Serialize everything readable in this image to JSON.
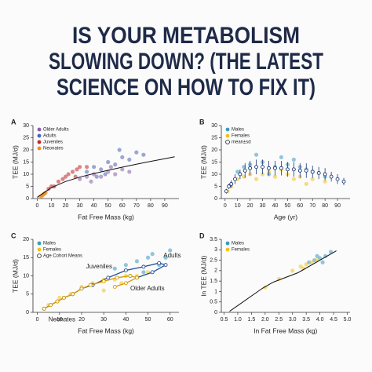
{
  "title": [
    "IS YOUR METABOLISM",
    "SLOWING DOWN? (THE LATEST",
    "SCIENCE ON HOW TO FIX IT)"
  ],
  "chart_data": [
    {
      "type": "scatter",
      "label": "A",
      "xlabel": "Fat Free Mass (kg)",
      "ylabel": "TEE (MJ/d)",
      "xlim": [
        -3,
        100
      ],
      "ylim": [
        0,
        30
      ],
      "xticks": [
        0,
        10,
        20,
        30,
        40,
        50,
        60,
        70,
        80,
        90
      ],
      "yticks": [
        0,
        5,
        10,
        15,
        20,
        25,
        30
      ],
      "series": [
        {
          "name": "Older Adults",
          "color": "#8b5fa8",
          "x": [
            30,
            35,
            40,
            45,
            50,
            55,
            60,
            38,
            52,
            65
          ],
          "y": [
            8,
            9,
            10,
            9,
            11,
            10,
            12,
            7,
            13,
            11
          ]
        },
        {
          "name": "Adults",
          "color": "#4a63b5",
          "x": [
            35,
            40,
            45,
            50,
            55,
            60,
            65,
            70,
            48,
            58,
            42,
            75
          ],
          "y": [
            11,
            13,
            12,
            15,
            14,
            17,
            16,
            19,
            10,
            20,
            9,
            18
          ]
        },
        {
          "name": "Juveniles",
          "color": "#c0282c",
          "x": [
            8,
            12,
            15,
            18,
            22,
            25,
            28,
            30,
            20,
            35,
            10,
            27
          ],
          "y": [
            4,
            5,
            7,
            8,
            10,
            11,
            12,
            13,
            9,
            13,
            5,
            9
          ]
        },
        {
          "name": "Neonates",
          "color": "#f08c1e",
          "x": [
            2,
            3,
            4,
            5,
            3.5,
            4.5,
            6,
            5.5
          ],
          "y": [
            0.8,
            1,
            1.5,
            2,
            1.2,
            1.8,
            2.5,
            2.2
          ]
        }
      ],
      "lines": [
        {
          "color": "#111111",
          "x": [
            0,
            10,
            20,
            30,
            40,
            50,
            60,
            70,
            80,
            90,
            97
          ],
          "y": [
            0.5,
            4.5,
            7,
            8.8,
            10.3,
            11.6,
            12.9,
            14.1,
            15.3,
            16.4,
            17.2
          ]
        }
      ]
    },
    {
      "type": "scatter",
      "label": "B",
      "xlabel": "Age (yr)",
      "ylabel": "TEE (MJ/d)",
      "xlim": [
        -3,
        100
      ],
      "ylim": [
        0,
        30
      ],
      "xticks": [
        0,
        10,
        20,
        30,
        40,
        50,
        60,
        70,
        80,
        90
      ],
      "yticks": [
        0,
        5,
        10,
        15,
        20,
        25,
        30
      ],
      "series": [
        {
          "name": "Males",
          "color": "#3a9bbf",
          "x": [
            20,
            30,
            40,
            50,
            60,
            70,
            80,
            25,
            45,
            65,
            35,
            55,
            15,
            10
          ],
          "y": [
            14,
            15,
            13,
            14,
            13,
            11,
            9,
            18,
            17,
            12,
            10,
            16,
            13,
            11
          ]
        },
        {
          "name": "Females",
          "color": "#f2c21b",
          "x": [
            20,
            30,
            40,
            50,
            60,
            70,
            80,
            25,
            45,
            65,
            35,
            55,
            15,
            10,
            5,
            2
          ],
          "y": [
            10,
            10,
            9,
            10,
            9,
            8,
            7,
            8,
            12,
            6,
            11,
            8,
            9,
            8,
            5,
            3
          ]
        }
      ],
      "means": [
        {
          "name": "mean±sd",
          "color": "#1e3a78",
          "x": [
            1,
            3,
            5,
            8,
            12,
            16,
            20,
            25,
            30,
            35,
            40,
            45,
            50,
            55,
            60,
            65,
            70,
            75,
            80,
            85,
            90,
            95
          ],
          "y": [
            3,
            5,
            6,
            8,
            10,
            11.5,
            12.5,
            13,
            13,
            12.5,
            12.5,
            12.5,
            12,
            12,
            11.5,
            11.5,
            11,
            10.5,
            10,
            9,
            8,
            7
          ],
          "errors": [
            1,
            1,
            1.5,
            2,
            2,
            3,
            3,
            3,
            3,
            3,
            3,
            3,
            3,
            3,
            3,
            3,
            2.5,
            2.5,
            2.5,
            2,
            2,
            1.5
          ]
        }
      ]
    },
    {
      "type": "scatter",
      "label": "C",
      "xlabel": "Fat Free Mass (kg)",
      "ylabel": "TEE (MJ/d)",
      "xlim": [
        -2,
        64
      ],
      "ylim": [
        0,
        20
      ],
      "xticks": [
        0,
        10,
        20,
        30,
        40,
        50,
        60
      ],
      "yticks": [
        0,
        5,
        10,
        15,
        20
      ],
      "series": [
        {
          "name": "Males",
          "color": "#3a9bbf",
          "x": [
            35,
            40,
            45,
            50,
            55,
            60,
            52,
            48,
            58,
            42
          ],
          "y": [
            12,
            13,
            14,
            15,
            13,
            17,
            16,
            11,
            15,
            10
          ]
        },
        {
          "name": "Females",
          "color": "#f2c21b",
          "x": [
            20,
            25,
            30,
            35,
            40,
            45,
            50,
            30,
            38,
            15,
            10,
            5
          ],
          "y": [
            7,
            8,
            9,
            9,
            10,
            10,
            11,
            6,
            8,
            5,
            4,
            2
          ]
        }
      ],
      "means": [
        {
          "name": "Age Cohort Means",
          "color": "#1e4f9a",
          "x": [
            3,
            6,
            9,
            12,
            16,
            20,
            25,
            32,
            40,
            48,
            55,
            58,
            52,
            45
          ],
          "y": [
            1,
            2,
            3,
            4,
            5,
            6.5,
            7.5,
            9.5,
            11.5,
            12.5,
            13.5,
            13,
            11,
            9.5
          ]
        },
        {
          "color": "#d49a00",
          "x": [
            3,
            6,
            9,
            12,
            16,
            20,
            24,
            30,
            36,
            42,
            45,
            40,
            35
          ],
          "y": [
            1,
            2,
            3,
            4,
            5,
            6.5,
            7.5,
            8.5,
            9.5,
            10,
            9.5,
            8,
            7
          ]
        }
      ],
      "annotations": [
        {
          "text": "Juveniles",
          "x": 22,
          "y": 12.5
        },
        {
          "text": "Adults",
          "x": 57,
          "y": 15.5
        },
        {
          "text": "Older Adults",
          "x": 42,
          "y": 6.5
        },
        {
          "text": "Neonates",
          "x": 5,
          "y": -2
        }
      ]
    },
    {
      "type": "scatter",
      "label": "D",
      "xlabel": "ln Fat Free Mass (kg)",
      "ylabel": "ln TEE (MJ/d)",
      "xlim": [
        0.4,
        5.1
      ],
      "ylim": [
        0,
        3.5
      ],
      "xticks": [
        0.5,
        {
          "value": 1,
          "label": "1.0"
        },
        1.5,
        {
          "value": 2,
          "label": "2.0"
        },
        2.5,
        {
          "value": 3,
          "label": "3.0"
        },
        3.5,
        {
          "value": 4,
          "label": "4.0"
        },
        4.5,
        {
          "value": 5,
          "label": "5.0"
        }
      ],
      "yticks": [
        0,
        0.5,
        1,
        1.5,
        2,
        2.5,
        3,
        3.5
      ],
      "series": [
        {
          "name": "Males",
          "color": "#3a9bbf",
          "x": [
            3.6,
            3.8,
            4.0,
            4.2,
            4.4,
            3.9,
            4.1
          ],
          "y": [
            2.4,
            2.5,
            2.6,
            2.7,
            2.9,
            2.7,
            2.4
          ]
        },
        {
          "name": "Females",
          "color": "#f2c21b",
          "x": [
            3.0,
            3.3,
            3.5,
            3.7,
            3.9,
            3.4,
            2.5,
            2.0
          ],
          "y": [
            2.0,
            2.2,
            2.3,
            2.4,
            2.5,
            2.1,
            1.6,
            1.2
          ]
        }
      ],
      "lines": [
        {
          "color": "#111111",
          "x": [
            0.7,
            1.9,
            2.3,
            3.2,
            4.6
          ],
          "y": [
            0.05,
            1.15,
            1.45,
            1.9,
            2.95
          ]
        }
      ]
    }
  ]
}
